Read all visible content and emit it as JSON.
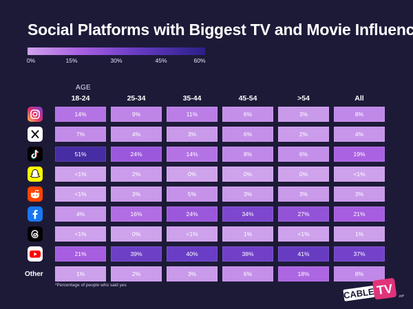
{
  "title": "Social Platforms with Biggest TV and Movie Influence",
  "legend": {
    "ticks": [
      "0%",
      "15%",
      "30%",
      "45%",
      "60%"
    ]
  },
  "age_label": "AGE",
  "footnote": "*Percentage of people who said yes",
  "logo": {
    "word1": "CABLE",
    "word2": "TV",
    "suffix": ".com"
  },
  "chart_data": {
    "type": "heatmap",
    "title": "Social Platforms with Biggest TV and Movie Influence",
    "x_label": "AGE",
    "columns": [
      "18-24",
      "25-34",
      "35-44",
      "45-54",
      ">54",
      "All"
    ],
    "rows": [
      {
        "platform": "Instagram",
        "icon": "instagram-icon",
        "label": "",
        "values": [
          14,
          9,
          11,
          6,
          3,
          8
        ],
        "display": [
          "14%",
          "9%",
          "11%",
          "6%",
          "3%",
          "8%"
        ]
      },
      {
        "platform": "X",
        "icon": "x-icon",
        "label": "",
        "values": [
          7,
          4,
          3,
          6,
          2,
          4
        ],
        "display": [
          "7%",
          "4%",
          "3%",
          "6%",
          "2%",
          "4%"
        ]
      },
      {
        "platform": "TikTok",
        "icon": "tiktok-icon",
        "label": "",
        "values": [
          51,
          24,
          14,
          8,
          6,
          19
        ],
        "display": [
          "51%",
          "24%",
          "14%",
          "8%",
          "6%",
          "19%"
        ]
      },
      {
        "platform": "Snapchat",
        "icon": "snapchat-icon",
        "label": "",
        "values": [
          0.5,
          2,
          0,
          0,
          0,
          0.5
        ],
        "display": [
          "<1%",
          "2%",
          "0%",
          "0%",
          "0%",
          "<1%"
        ]
      },
      {
        "platform": "Reddit",
        "icon": "reddit-icon",
        "label": "",
        "values": [
          0.5,
          3,
          5,
          3,
          3,
          3
        ],
        "display": [
          "<1%",
          "3%",
          "5%",
          "3%",
          "3%",
          "3%"
        ]
      },
      {
        "platform": "Facebook",
        "icon": "facebook-icon",
        "label": "",
        "values": [
          4,
          16,
          24,
          34,
          27,
          21
        ],
        "display": [
          "4%",
          "16%",
          "24%",
          "34%",
          "27%",
          "21%"
        ]
      },
      {
        "platform": "Threads",
        "icon": "threads-icon",
        "label": "",
        "values": [
          0.5,
          0,
          0.5,
          1,
          0.5,
          1
        ],
        "display": [
          "<1%",
          "0%",
          "<1%",
          "1%",
          "<1%",
          "1%"
        ]
      },
      {
        "platform": "YouTube",
        "icon": "youtube-icon",
        "label": "",
        "values": [
          21,
          39,
          40,
          38,
          41,
          37
        ],
        "display": [
          "21%",
          "39%",
          "40%",
          "38%",
          "41%",
          "37%"
        ]
      },
      {
        "platform": "Other",
        "icon": "",
        "label": "Other",
        "values": [
          1,
          2,
          3,
          6,
          18,
          8
        ],
        "display": [
          "1%",
          "2%",
          "3%",
          "6%",
          "18%",
          "8%"
        ]
      }
    ],
    "color_scale": {
      "min": 0,
      "max": 60,
      "stops": [
        "#cfa3ec",
        "#a95fe1",
        "#6a3dc6",
        "#2a1f87"
      ]
    }
  }
}
